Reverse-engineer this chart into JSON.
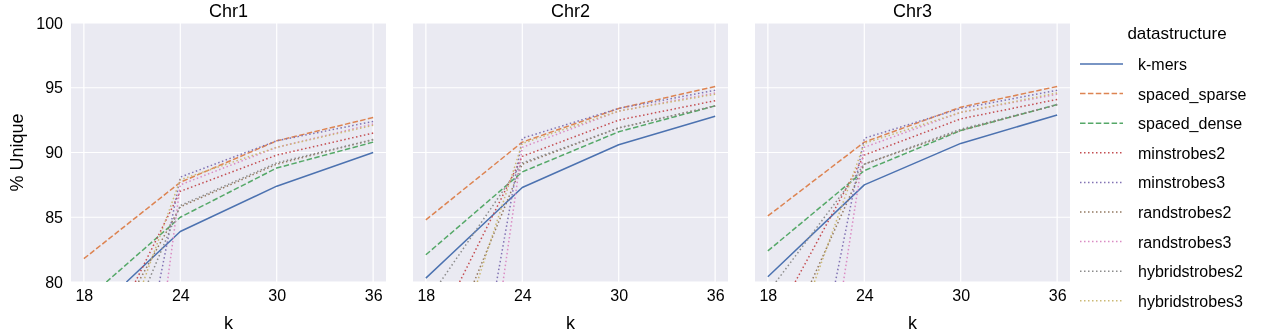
{
  "chart_data": [
    {
      "type": "line",
      "title": "Chr1",
      "xlabel": "k",
      "ylabel": "% Unique",
      "xlim": [
        17.2,
        36.8
      ],
      "ylim": [
        80,
        100
      ],
      "xticks": [
        18,
        24,
        30,
        36
      ],
      "yticks": [
        80,
        85,
        90,
        95,
        100
      ],
      "grid": true,
      "legend": false,
      "series": [
        {
          "color": "#4c72b0",
          "line_style": "solid",
          "x": [
            20.65,
            24,
            30,
            36
          ],
          "values": [
            80,
            83.9,
            87.4,
            90.0
          ]
        },
        {
          "color": "#dd8452",
          "line_style": "dashed",
          "x": [
            18,
            24,
            30,
            36
          ],
          "values": [
            81.8,
            87.7,
            90.9,
            92.7
          ]
        },
        {
          "color": "#55a868",
          "line_style": "dashed",
          "x": [
            19.4,
            24,
            30,
            36
          ],
          "values": [
            80,
            85.0,
            88.8,
            90.8
          ]
        },
        {
          "color": "#c44e52",
          "line_style": "dotted",
          "x": [
            21.2,
            24,
            30,
            36
          ],
          "values": [
            80,
            87.0,
            89.8,
            91.5
          ]
        },
        {
          "color": "#8172b3",
          "line_style": "dotted",
          "x": [
            22.7,
            24,
            30,
            36
          ],
          "values": [
            80,
            88.1,
            90.9,
            92.4
          ]
        },
        {
          "color": "#937860",
          "line_style": "dotted",
          "x": [
            21.4,
            24,
            30,
            36
          ],
          "values": [
            80,
            85.8,
            89.1,
            91.0
          ]
        },
        {
          "color": "#da8bc3",
          "line_style": "dotted",
          "x": [
            23.2,
            24,
            30,
            36
          ],
          "values": [
            80,
            87.5,
            90.4,
            92.2
          ]
        },
        {
          "color": "#8c8c8c",
          "line_style": "dotted",
          "x": [
            22.0,
            24,
            30,
            36
          ],
          "values": [
            80,
            85.9,
            89.2,
            91.0
          ]
        },
        {
          "color": "#ccb974",
          "line_style": "dotted",
          "x": [
            21.7,
            24,
            30,
            36
          ],
          "values": [
            80,
            87.9,
            90.4,
            92.1
          ]
        }
      ]
    },
    {
      "type": "line",
      "title": "Chr2",
      "xlabel": "k",
      "xlim": [
        17.2,
        36.8
      ],
      "ylim": [
        80,
        100
      ],
      "xticks": [
        18,
        24,
        30,
        36
      ],
      "yticks": [
        80,
        85,
        90,
        95,
        100
      ],
      "tick_labels": "x",
      "grid": true,
      "legend": false,
      "series": [
        {
          "color": "#4c72b0",
          "line_style": "solid",
          "x": [
            18,
            24,
            30,
            36
          ],
          "values": [
            80.3,
            87.3,
            90.6,
            92.8
          ]
        },
        {
          "color": "#dd8452",
          "line_style": "dashed",
          "x": [
            18,
            24,
            30,
            36
          ],
          "values": [
            84.8,
            90.8,
            93.4,
            95.1
          ]
        },
        {
          "color": "#55a868",
          "line_style": "dashed",
          "x": [
            18,
            24,
            30,
            36
          ],
          "values": [
            82.1,
            88.5,
            91.6,
            93.6
          ]
        },
        {
          "color": "#c44e52",
          "line_style": "dotted",
          "x": [
            20.1,
            24,
            30,
            36
          ],
          "values": [
            80,
            89.7,
            92.5,
            94.0
          ]
        },
        {
          "color": "#8172b3",
          "line_style": "dotted",
          "x": [
            22.4,
            24,
            30,
            36
          ],
          "values": [
            80,
            91.1,
            93.4,
            94.8
          ]
        },
        {
          "color": "#937860",
          "line_style": "dotted",
          "x": [
            21.0,
            24,
            30,
            36
          ],
          "values": [
            80,
            89.1,
            91.9,
            93.6
          ]
        },
        {
          "color": "#da8bc3",
          "line_style": "dotted",
          "x": [
            22.8,
            24,
            30,
            36
          ],
          "values": [
            80,
            90.4,
            93.2,
            94.6
          ]
        },
        {
          "color": "#8c8c8c",
          "line_style": "dotted",
          "x": [
            18.9,
            24,
            30,
            36
          ],
          "values": [
            80,
            89.2,
            91.9,
            93.6
          ]
        },
        {
          "color": "#ccb974",
          "line_style": "dotted",
          "x": [
            21.2,
            24,
            30,
            36
          ],
          "values": [
            80,
            90.7,
            93.2,
            94.5
          ]
        }
      ]
    },
    {
      "type": "line",
      "title": "Chr3",
      "xlabel": "k",
      "legend_title": "datastructure",
      "xlim": [
        17.2,
        36.8
      ],
      "ylim": [
        80,
        100
      ],
      "xticks": [
        18,
        24,
        30,
        36
      ],
      "yticks": [
        80,
        85,
        90,
        95,
        100
      ],
      "tick_labels": "x",
      "grid": true,
      "legend": "right",
      "series": [
        {
          "name": "k-mers",
          "color": "#4c72b0",
          "line_style": "solid",
          "x": [
            18,
            24,
            30,
            36
          ],
          "values": [
            80.4,
            87.5,
            90.7,
            92.9
          ]
        },
        {
          "name": "spaced_sparse",
          "color": "#dd8452",
          "line_style": "dashed",
          "x": [
            18,
            24,
            30,
            36
          ],
          "values": [
            85.1,
            90.8,
            93.5,
            95.1
          ]
        },
        {
          "name": "spaced_dense",
          "color": "#55a868",
          "line_style": "dashed",
          "x": [
            18,
            24,
            30,
            36
          ],
          "values": [
            82.4,
            88.6,
            91.7,
            93.7
          ]
        },
        {
          "name": "minstrobes2",
          "color": "#c44e52",
          "line_style": "dotted",
          "x": [
            19.7,
            24,
            30,
            36
          ],
          "values": [
            80,
            89.8,
            92.6,
            94.1
          ]
        },
        {
          "name": "minstrobes3",
          "color": "#8172b3",
          "line_style": "dotted",
          "x": [
            22.2,
            24,
            30,
            36
          ],
          "values": [
            80,
            91.1,
            93.4,
            94.8
          ]
        },
        {
          "name": "randstrobes2",
          "color": "#937860",
          "line_style": "dotted",
          "x": [
            20.7,
            24,
            30,
            36
          ],
          "values": [
            80,
            89.1,
            91.7,
            93.7
          ]
        },
        {
          "name": "randstrobes3",
          "color": "#da8bc3",
          "line_style": "dotted",
          "x": [
            22.7,
            24,
            30,
            36
          ],
          "values": [
            80,
            90.4,
            93.1,
            94.5
          ]
        },
        {
          "name": "hybridstrobes2",
          "color": "#8c8c8c",
          "line_style": "dotted",
          "x": [
            18.5,
            24,
            30,
            36
          ],
          "values": [
            80,
            89.1,
            91.8,
            93.7
          ]
        },
        {
          "name": "hybridstrobes3",
          "color": "#ccb974",
          "line_style": "dotted",
          "x": [
            20.9,
            24,
            30,
            36
          ],
          "values": [
            80,
            90.7,
            93.1,
            94.6
          ]
        }
      ]
    }
  ]
}
